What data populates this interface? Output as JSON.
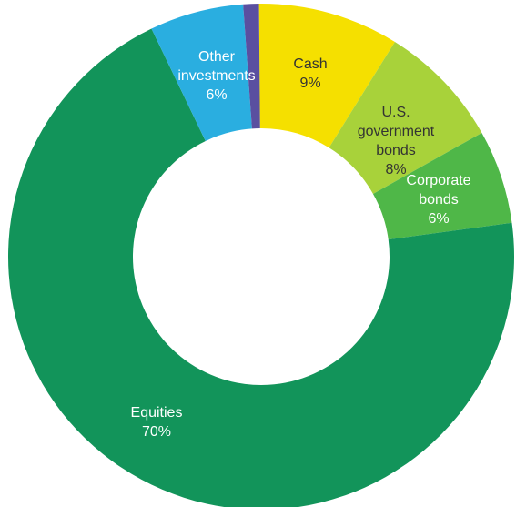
{
  "chart_data": {
    "type": "pie",
    "donut": true,
    "title": "",
    "slices": [
      {
        "label_lines": [
          "Cash",
          "9%"
        ],
        "value": 9,
        "color": "#f5e000",
        "text": "dark"
      },
      {
        "label_lines": [
          "U.S.",
          "government",
          "bonds",
          "8%"
        ],
        "value": 8,
        "color": "#a8d23a",
        "text": "dark"
      },
      {
        "label_lines": [
          "Corporate",
          "bonds",
          "6%"
        ],
        "value": 6,
        "color": "#4fb748",
        "text": "light"
      },
      {
        "label_lines": [
          "Equities",
          "70%"
        ],
        "value": 70,
        "color": "#12945a",
        "text": "light"
      },
      {
        "label_lines": [
          "Other",
          "investments",
          "6%"
        ],
        "value": 6,
        "color": "#2aaee0",
        "text": "light"
      },
      {
        "label_lines": [],
        "value": 1,
        "color": "#5a4fa0",
        "text": "light"
      }
    ]
  }
}
